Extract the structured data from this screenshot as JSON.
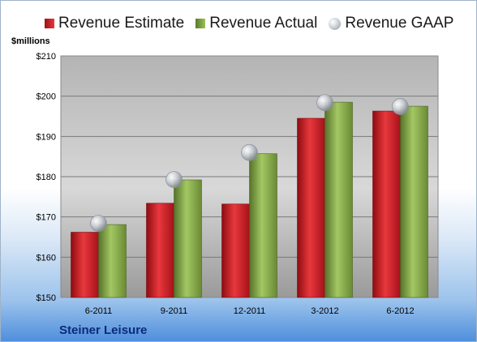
{
  "chart_data": {
    "type": "bar",
    "title": "",
    "ylabel": "$millions",
    "xlabel": "",
    "categories": [
      "6-2011",
      "9-2011",
      "12-2011",
      "3-2012",
      "6-2012"
    ],
    "series": [
      {
        "name": "Revenue Estimate",
        "type": "bar",
        "color": "#c8161d",
        "values": [
          166.2,
          173.4,
          173.2,
          194.5,
          196.3
        ]
      },
      {
        "name": "Revenue Actual",
        "type": "bar",
        "color": "#7d9b3f",
        "values": [
          168.1,
          179.2,
          185.7,
          198.5,
          197.5
        ]
      },
      {
        "name": "Revenue GAAP",
        "type": "marker",
        "color": "#b9bec6",
        "values": [
          168.4,
          179.3,
          186.0,
          198.4,
          197.4
        ]
      }
    ],
    "ylim": [
      150,
      210
    ],
    "yticks": [
      "$150",
      "$160",
      "$170",
      "$180",
      "$190",
      "$200",
      "$210"
    ],
    "ytick_values": [
      150,
      160,
      170,
      180,
      190,
      200,
      210
    ],
    "grid": true,
    "legend": "top"
  },
  "legend": {
    "estimate": "Revenue Estimate",
    "actual": "Revenue Actual",
    "gaap": "Revenue GAAP"
  },
  "units": "$millions",
  "company": "Steiner Leisure"
}
